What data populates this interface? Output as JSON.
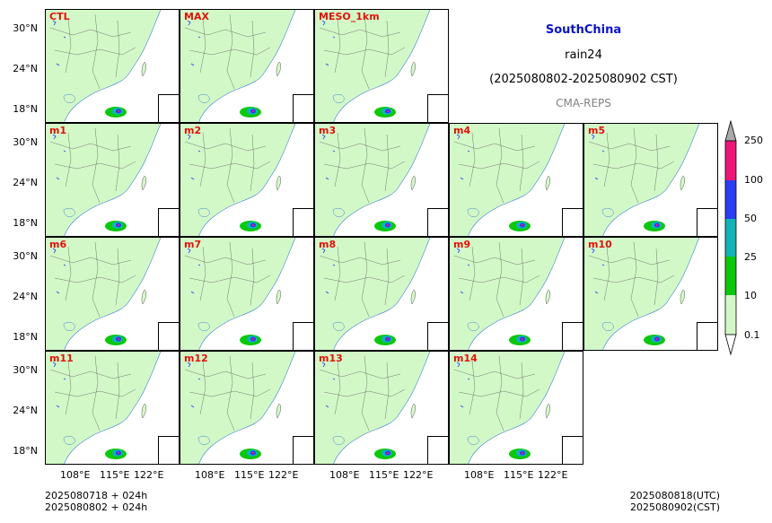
{
  "header": {
    "region": "SouthChina",
    "variable": "rain24",
    "period": "(2025080802-2025080902 CST)",
    "system": "CMA-REPS"
  },
  "panels": [
    {
      "label": "CTL",
      "row": 0,
      "col": 0
    },
    {
      "label": "MAX",
      "row": 0,
      "col": 1
    },
    {
      "label": "MESO_1km",
      "row": 0,
      "col": 2
    },
    {
      "label": "m1",
      "row": 1,
      "col": 0
    },
    {
      "label": "m2",
      "row": 1,
      "col": 1
    },
    {
      "label": "m3",
      "row": 1,
      "col": 2
    },
    {
      "label": "m4",
      "row": 1,
      "col": 3
    },
    {
      "label": "m5",
      "row": 1,
      "col": 4
    },
    {
      "label": "m6",
      "row": 2,
      "col": 0
    },
    {
      "label": "m7",
      "row": 2,
      "col": 1
    },
    {
      "label": "m8",
      "row": 2,
      "col": 2
    },
    {
      "label": "m9",
      "row": 2,
      "col": 3
    },
    {
      "label": "m10",
      "row": 2,
      "col": 4
    },
    {
      "label": "m11",
      "row": 3,
      "col": 0
    },
    {
      "label": "m12",
      "row": 3,
      "col": 1
    },
    {
      "label": "m13",
      "row": 3,
      "col": 2
    },
    {
      "label": "m14",
      "row": 3,
      "col": 3
    }
  ],
  "axes": {
    "lat_ticks": [
      "30°N",
      "24°N",
      "18°N"
    ],
    "lon_ticks": [
      "108°E",
      "115°E",
      "122°E"
    ]
  },
  "colorbar": {
    "levels": [
      "0.1",
      "10",
      "25",
      "50",
      "100",
      "250"
    ],
    "colors": [
      "#d3f8c8",
      "#0ac80a",
      "#10b4b4",
      "#2a3cf5",
      "#f01478"
    ],
    "over_color": "#a9a9a9",
    "under_color": "#ffffff"
  },
  "footer": {
    "init_line1": "2025080718  +  024h",
    "init_line2": "2025080802  +  024h",
    "valid_utc": "2025080818(UTC)",
    "valid_cst": "2025080902(CST)"
  },
  "colors": {
    "title_blue": "#0a14c8",
    "label_red": "#e0120c",
    "light_green": "#d3f8c8",
    "system_gray": "#808080"
  }
}
